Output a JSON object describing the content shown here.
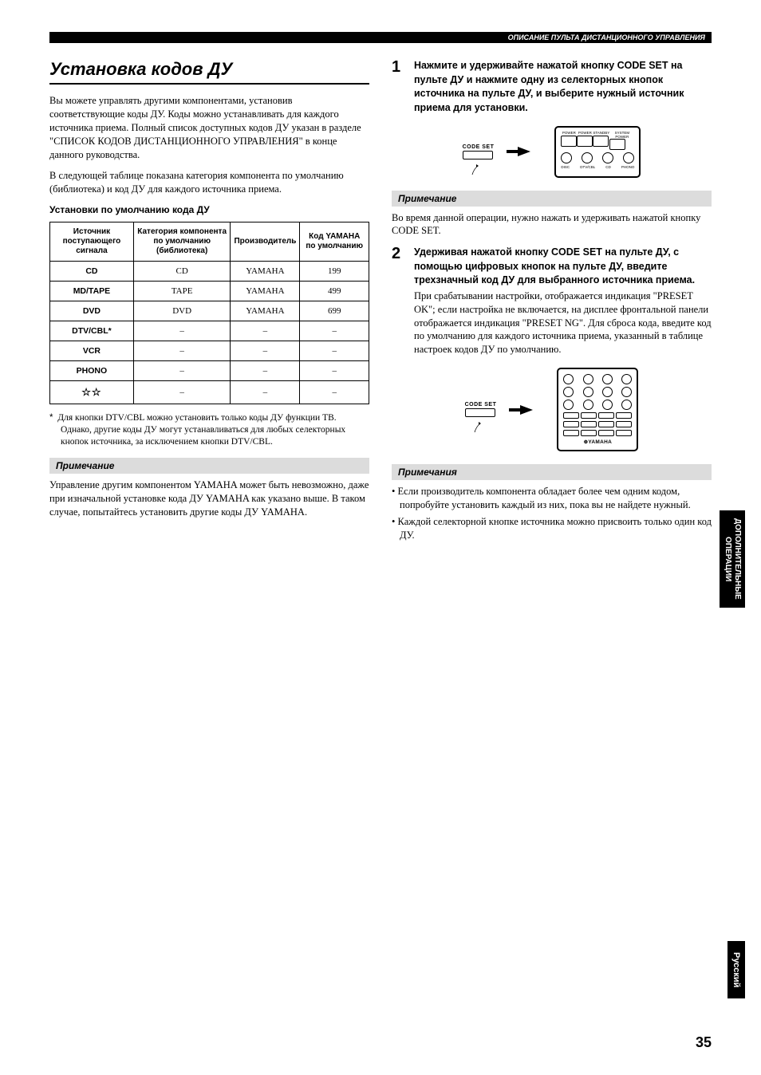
{
  "header": {
    "breadcrumb": "ОПИСАНИЕ ПУЛЬТА ДИСТАНЦИОННОГО УПРАВЛЕНИЯ"
  },
  "left": {
    "title": "Установка кодов ДУ",
    "intro1": "Вы можете управлять другими компонентами, установив соответствующие коды ДУ. Коды можно устанавливать для каждого источника приема. Полный список доступных кодов ДУ указан в разделе \"СПИСОК КОДОВ ДИСТАНЦИОННОГО УПРАВЛЕНИЯ\" в конце данного руководства.",
    "intro2": "В следующей таблице показана категория компонента по умолчанию (библиотека) и код ДУ для каждого источника приема.",
    "table_title": "Установки по умолчанию кода ДУ",
    "table": {
      "headers": [
        "Источник поступающего сигнала",
        "Категория компонента по умолчанию (библиотека)",
        "Производитель",
        "Код YAMAHA по умолчанию"
      ],
      "rows": [
        [
          "CD",
          "CD",
          "YAMAHA",
          "199"
        ],
        [
          "MD/TAPE",
          "TAPE",
          "YAMAHA",
          "499"
        ],
        [
          "DVD",
          "DVD",
          "YAMAHA",
          "699"
        ],
        [
          "DTV/CBL*",
          "–",
          "–",
          "–"
        ],
        [
          "VCR",
          "–",
          "–",
          "–"
        ],
        [
          "PHONO",
          "–",
          "–",
          "–"
        ],
        [
          "☆☆",
          "–",
          "–",
          "–"
        ]
      ]
    },
    "footnote_marker": "*",
    "footnote": "Для кнопки DTV/CBL можно установить только коды ДУ функции ТВ. Однако, другие коды ДУ могут устанавливаться для любых селекторных кнопок источника, за исключением кнопки DTV/CBL.",
    "note_label": "Примечание",
    "note_text": "Управление другим компонентом YAMAHA может быть невозможно, даже при изначальной установке кода ДУ YAMAHA как указано выше. В таком случае, попытайтесь установить другие коды ДУ YAMAHA."
  },
  "right": {
    "step1_num": "1",
    "step1_bold": "Нажмите и удерживайте нажатой кнопку CODE SET на пульте ДУ и нажмите одну из селекторных кнопок источника на пульте ДУ, и выберите нужный источник приема для установки.",
    "codeset_label": "CODE SET",
    "remote_top_labels": [
      "POWER",
      "POWER",
      "STANDBY",
      "SYSTEM POWER"
    ],
    "remote_mid_labels": [
      "TV",
      "AV",
      "",
      ""
    ],
    "remote_circle_labels": [
      "CD",
      "MD/TAPE",
      "DVD",
      "DTV/CBL"
    ],
    "remote_bot_labels": [
      "DISC",
      "DTV/CBL",
      "CD",
      "PHONO"
    ],
    "note1_label": "Примечание",
    "note1_text": "Во время данной операции, нужно нажать и удерживать нажатой кнопку CODE SET.",
    "step2_num": "2",
    "step2_bold": "Удерживая нажатой кнопку CODE SET на пульте ДУ, с помощью цифровых кнопок на пульте ДУ, введите трехзначный код ДУ для выбранного источника приема.",
    "step2_plain": "При срабатывании настройки, отображается индикация \"PRESET OK\"; если настройка не включается, на дисплее фронтальной панели отображается индикация \"PRESET NG\". Для сброса кода, введите код по умолчанию для каждого источника приема, указанный в таблице настроек кодов ДУ по умолчанию.",
    "brand": "YAMAHA",
    "notes2_label": "Примечания",
    "notes2_items": [
      "Если производитель компонента обладает более чем одним кодом, попробуйте установить каждый из них, пока вы не найдете нужный.",
      "Каждой селекторной кнопке источника можно присвоить только один код ДУ."
    ]
  },
  "side": {
    "tab1_line1": "ДОПОЛНИТЕЛЬНЫЕ",
    "tab1_line2": "ОПЕРАЦИИ",
    "tab2": "Русский"
  },
  "page_number": "35"
}
